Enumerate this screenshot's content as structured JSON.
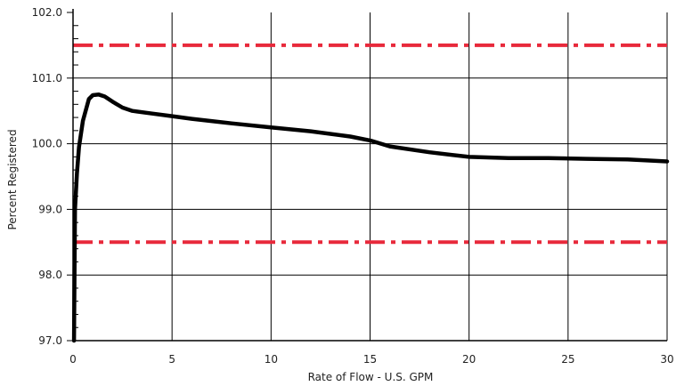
{
  "chart_data": {
    "type": "line",
    "xlabel": "Rate of Flow - U.S. GPM",
    "ylabel": "Percent Registered",
    "xlim": [
      0,
      30
    ],
    "ylim": [
      97.0,
      102.0
    ],
    "x_ticks": [
      0,
      5,
      10,
      15,
      20,
      25,
      30
    ],
    "x_tick_labels": [
      "0",
      "5",
      "10",
      "15",
      "20",
      "25",
      "30"
    ],
    "y_ticks": [
      97.0,
      98.0,
      99.0,
      100.0,
      101.0,
      102.0
    ],
    "y_tick_labels": [
      "97.0",
      "98.0",
      "99.0",
      "100.0",
      "101.0",
      "102.0"
    ],
    "y_minor_ticks": [
      97.2,
      97.4,
      97.6,
      97.8,
      98.2,
      98.4,
      98.6,
      98.8,
      99.2,
      99.4,
      99.6,
      99.8,
      100.2,
      100.4,
      100.6,
      100.8,
      101.2,
      101.4,
      101.6,
      101.8
    ],
    "grid": true,
    "series": [
      {
        "color": "#000000",
        "x": [
          0.05,
          0.1,
          0.2,
          0.3,
          0.5,
          0.8,
          1.0,
          1.3,
          1.6,
          2.0,
          2.5,
          3.0,
          4.0,
          5.0,
          6.0,
          8.0,
          10.0,
          12.0,
          14.0,
          15.0,
          16.0,
          18.0,
          20.0,
          22.0,
          24.0,
          26.0,
          28.0,
          30.0
        ],
        "y": [
          97.0,
          99.0,
          99.55,
          99.95,
          100.35,
          100.68,
          100.74,
          100.75,
          100.72,
          100.64,
          100.55,
          100.5,
          100.46,
          100.42,
          100.38,
          100.31,
          100.25,
          100.19,
          100.11,
          100.05,
          99.96,
          99.87,
          99.8,
          99.78,
          99.78,
          99.77,
          99.76,
          99.73
        ]
      }
    ],
    "reference_lines": [
      {
        "y": 101.5,
        "color": "#e8293b",
        "style": "dash-dot"
      },
      {
        "y": 98.5,
        "color": "#e8293b",
        "style": "dash-dot"
      }
    ]
  }
}
